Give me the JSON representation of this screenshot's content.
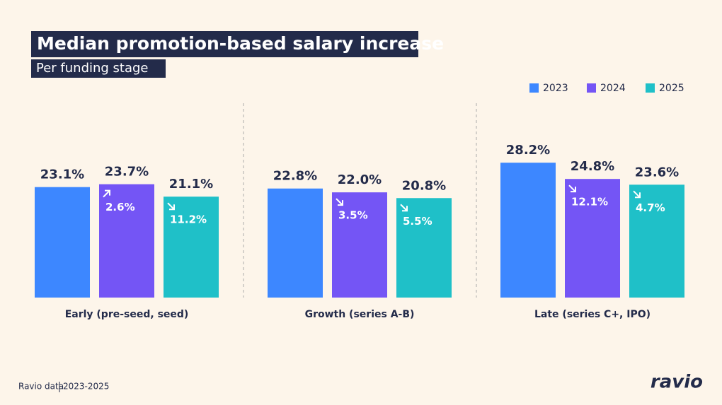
{
  "chart_data": {
    "type": "bar",
    "title": "Median promotion-based salary increase",
    "subtitle": "Per funding stage",
    "categories": [
      "Early (pre-seed, seed)",
      "Growth (series A-B)",
      "Late (series C+, IPO)"
    ],
    "series": [
      {
        "name": "2023",
        "color": "#3d87ff",
        "values": [
          23.1,
          22.8,
          28.2
        ],
        "value_labels": [
          "23.1%",
          "22.8%",
          "28.2%"
        ]
      },
      {
        "name": "2024",
        "color": "#7455f5",
        "values": [
          23.7,
          22.0,
          24.8
        ],
        "value_labels": [
          "23.7%",
          "22.0%",
          "24.8%"
        ],
        "changes": [
          2.6,
          3.5,
          12.1
        ],
        "change_labels": [
          "2.6%",
          "3.5%",
          "12.1%"
        ],
        "change_directions": [
          "up",
          "down",
          "down"
        ]
      },
      {
        "name": "2025",
        "color": "#1fc0c8",
        "values": [
          21.1,
          20.8,
          23.6
        ],
        "value_labels": [
          "21.1%",
          "20.8%",
          "23.6%"
        ],
        "changes": [
          11.2,
          5.5,
          4.7
        ],
        "change_labels": [
          "11.2%",
          "5.5%",
          "4.7%"
        ],
        "change_directions": [
          "down",
          "down",
          "down"
        ]
      }
    ],
    "ylim": [
      0,
      30
    ],
    "legend": "top-right",
    "source": "Ravio data",
    "period": "2023-2025",
    "brand": "ravio"
  }
}
